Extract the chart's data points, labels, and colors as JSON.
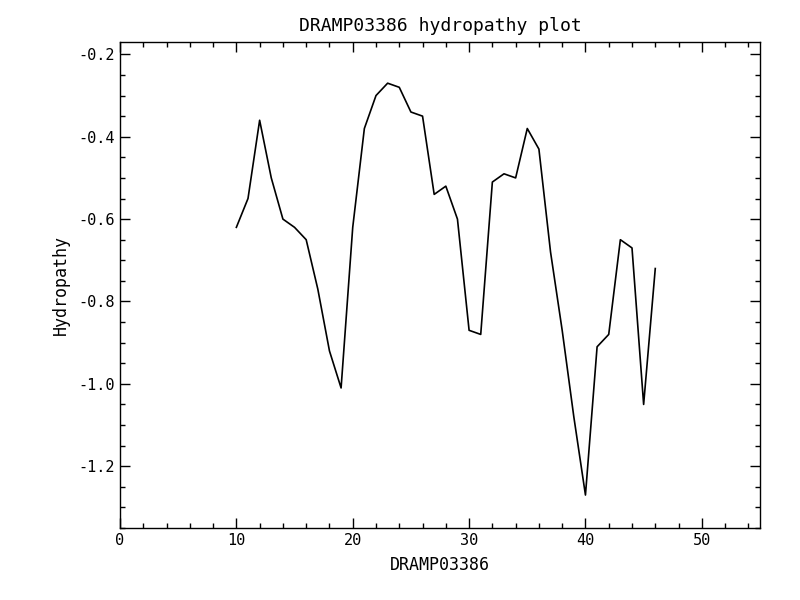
{
  "title": "DRAMP03386 hydropathy plot",
  "xlabel": "DRAMP03386",
  "ylabel": "Hydropathy",
  "xlim": [
    0,
    55
  ],
  "ylim": [
    -1.35,
    -0.17
  ],
  "xticks": [
    0,
    10,
    20,
    30,
    40,
    50
  ],
  "yticks": [
    -1.2,
    -1.0,
    -0.8,
    -0.6,
    -0.4,
    -0.2
  ],
  "line_color": "#000000",
  "line_width": 1.2,
  "background_color": "#ffffff",
  "x": [
    10,
    11,
    12,
    13,
    14,
    15,
    16,
    17,
    18,
    19,
    20,
    21,
    22,
    23,
    24,
    25,
    26,
    27,
    28,
    29,
    30,
    31,
    32,
    33,
    34,
    35,
    36,
    37,
    38,
    39,
    40,
    41,
    42,
    43,
    44,
    45,
    46
  ],
  "y": [
    -0.62,
    -0.55,
    -0.36,
    -0.5,
    -0.6,
    -0.62,
    -0.65,
    -0.77,
    -0.92,
    -1.01,
    -0.62,
    -0.38,
    -0.3,
    -0.27,
    -0.28,
    -0.34,
    -0.35,
    -0.54,
    -0.52,
    -0.6,
    -0.87,
    -0.88,
    -0.51,
    -0.49,
    -0.5,
    -0.38,
    -0.43,
    -0.68,
    -0.87,
    -1.08,
    -1.27,
    -0.91,
    -0.88,
    -0.65,
    -0.67,
    -1.05,
    -0.72
  ]
}
